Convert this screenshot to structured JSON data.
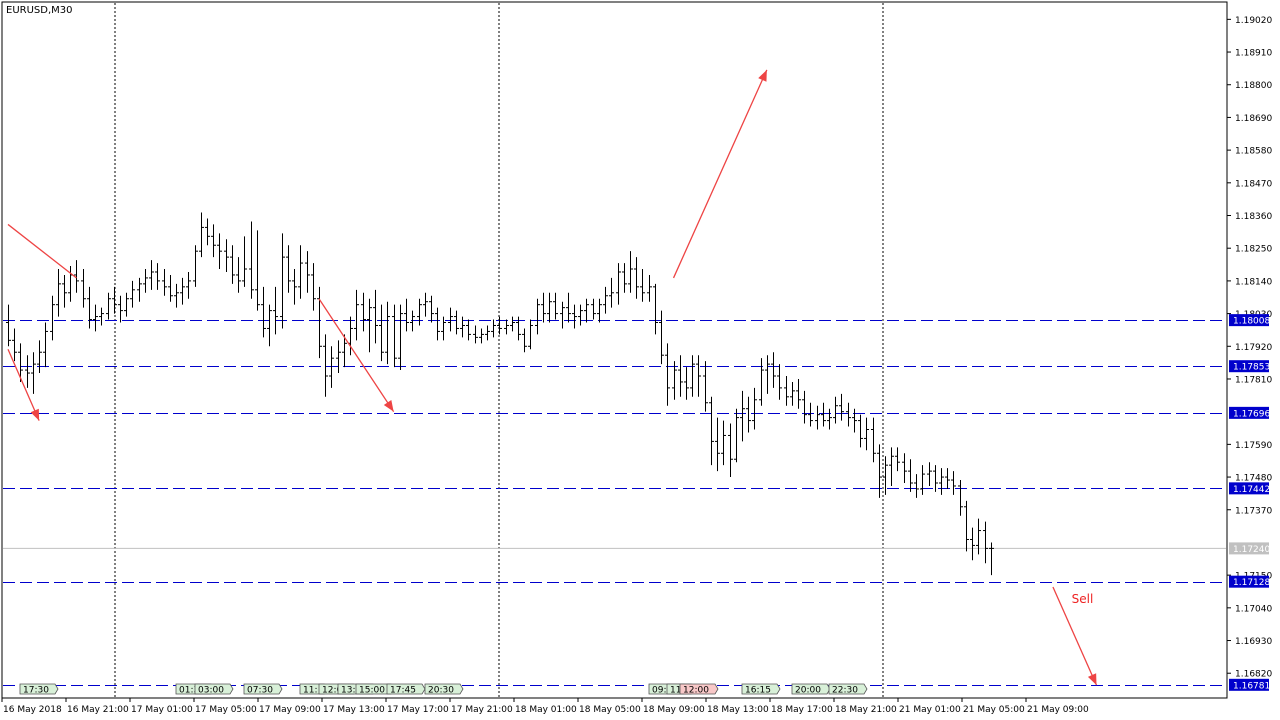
{
  "window": {
    "symbol_label": "EURUSD,M30"
  },
  "colors": {
    "bars": "#000000",
    "hline": "#0000cc",
    "price_tag_bg": "#0000cc",
    "current_tag_bg": "#c0c0c0",
    "current_line": "#c0c0c0",
    "arrow": "#ee4444",
    "event_green": "#d8f0d8",
    "event_red": "#f8c8c8",
    "note_text": "#ee2222"
  },
  "chart_data": {
    "type": "ohlc",
    "timeframe": "M30",
    "symbol": "EURUSD",
    "ylim": [
      1.1674,
      1.19075
    ],
    "y_ticks": [
      "1.19020",
      "1.18910",
      "1.18800",
      "1.18690",
      "1.18580",
      "1.18470",
      "1.18360",
      "1.18250",
      "1.18140",
      "1.18030",
      "1.17920",
      "1.17810",
      "1.17590",
      "1.17480",
      "1.17370",
      "1.17150",
      "1.17040",
      "1.16930",
      "1.16820"
    ],
    "x_ticks": [
      "16 May 2018",
      "16 May 21:00",
      "17 May 01:00",
      "17 May 05:00",
      "17 May 09:00",
      "17 May 13:00",
      "17 May 17:00",
      "17 May 21:00",
      "18 May 01:00",
      "18 May 05:00",
      "18 May 09:00",
      "18 May 13:00",
      "18 May 17:00",
      "18 May 21:00",
      "21 May 01:00",
      "21 May 05:00",
      "21 May 09:00"
    ],
    "day_separators": [
      "17 May 2018",
      "18 May 2018",
      "21 May 2018"
    ],
    "horizontal_levels": [
      "1.18008",
      "1.17853",
      "1.17696",
      "1.17442",
      "1.17128",
      "1.16781"
    ],
    "current_price": "1.17240",
    "bars": [
      [
        1.18,
        1.1806,
        1.1792,
        1.1794
      ],
      [
        1.1794,
        1.1798,
        1.1787,
        1.179
      ],
      [
        1.179,
        1.1793,
        1.178,
        1.1784
      ],
      [
        1.1784,
        1.1789,
        1.1778,
        1.1783
      ],
      [
        1.1783,
        1.179,
        1.1776,
        1.1786
      ],
      [
        1.1786,
        1.1794,
        1.1783,
        1.179
      ],
      [
        1.179,
        1.18,
        1.1785,
        1.1797
      ],
      [
        1.1797,
        1.1809,
        1.1794,
        1.1806
      ],
      [
        1.1806,
        1.1818,
        1.1802,
        1.1813
      ],
      [
        1.1813,
        1.1816,
        1.1805,
        1.181
      ],
      [
        1.181,
        1.1819,
        1.1807,
        1.1816
      ],
      [
        1.1816,
        1.1821,
        1.181,
        1.1814
      ],
      [
        1.1814,
        1.1818,
        1.1805,
        1.1808
      ],
      [
        1.1808,
        1.1812,
        1.1798,
        1.1801
      ],
      [
        1.1801,
        1.1806,
        1.1797,
        1.1802
      ],
      [
        1.1802,
        1.1805,
        1.1799,
        1.1803
      ],
      [
        1.1803,
        1.181,
        1.1801,
        1.1808
      ],
      [
        1.1808,
        1.1812,
        1.1803,
        1.1806
      ],
      [
        1.1806,
        1.1809,
        1.18,
        1.1804
      ],
      [
        1.1804,
        1.181,
        1.1802,
        1.1808
      ],
      [
        1.1808,
        1.1814,
        1.1805,
        1.1811
      ],
      [
        1.1811,
        1.1815,
        1.1807,
        1.1813
      ],
      [
        1.1813,
        1.1818,
        1.181,
        1.1815
      ],
      [
        1.1815,
        1.1821,
        1.1811,
        1.1817
      ],
      [
        1.1817,
        1.182,
        1.1811,
        1.1814
      ],
      [
        1.1814,
        1.1818,
        1.1809,
        1.1812
      ],
      [
        1.1812,
        1.1816,
        1.1807,
        1.1809
      ],
      [
        1.1809,
        1.1813,
        1.1805,
        1.181
      ],
      [
        1.181,
        1.1815,
        1.1806,
        1.1812
      ],
      [
        1.1812,
        1.1817,
        1.1808,
        1.1814
      ],
      [
        1.1814,
        1.1826,
        1.1812,
        1.1824
      ],
      [
        1.1824,
        1.1837,
        1.1822,
        1.1832
      ],
      [
        1.1832,
        1.1835,
        1.1826,
        1.1829
      ],
      [
        1.1829,
        1.1833,
        1.1822,
        1.1826
      ],
      [
        1.1826,
        1.183,
        1.1818,
        1.1824
      ],
      [
        1.1824,
        1.1828,
        1.1817,
        1.1822
      ],
      [
        1.1822,
        1.1826,
        1.1813,
        1.1816
      ],
      [
        1.1816,
        1.1822,
        1.181,
        1.1814
      ],
      [
        1.1814,
        1.1829,
        1.1812,
        1.1818
      ],
      [
        1.1818,
        1.1834,
        1.1808,
        1.1811
      ],
      [
        1.1811,
        1.1831,
        1.1804,
        1.1806
      ],
      [
        1.1806,
        1.1812,
        1.1795,
        1.1798
      ],
      [
        1.1798,
        1.1806,
        1.1792,
        1.1804
      ],
      [
        1.1804,
        1.1812,
        1.1796,
        1.1802
      ],
      [
        1.1802,
        1.183,
        1.1798,
        1.1822
      ],
      [
        1.1822,
        1.1826,
        1.181,
        1.1814
      ],
      [
        1.1814,
        1.1818,
        1.1806,
        1.1812
      ],
      [
        1.1812,
        1.1826,
        1.1808,
        1.182
      ],
      [
        1.182,
        1.1824,
        1.181,
        1.1816
      ],
      [
        1.1816,
        1.182,
        1.1804,
        1.1808
      ],
      [
        1.1808,
        1.1812,
        1.1788,
        1.1792
      ],
      [
        1.1792,
        1.1796,
        1.1775,
        1.1782
      ],
      [
        1.1782,
        1.1792,
        1.1778,
        1.1788
      ],
      [
        1.1788,
        1.1794,
        1.1783,
        1.179
      ],
      [
        1.179,
        1.1796,
        1.1785,
        1.1793
      ],
      [
        1.1793,
        1.1802,
        1.1789,
        1.1798
      ],
      [
        1.1798,
        1.1811,
        1.1794,
        1.1806
      ],
      [
        1.1806,
        1.181,
        1.1797,
        1.1801
      ],
      [
        1.1801,
        1.1808,
        1.179,
        1.1805
      ],
      [
        1.1805,
        1.1811,
        1.1793,
        1.1799
      ],
      [
        1.1799,
        1.1806,
        1.1787,
        1.179
      ],
      [
        1.179,
        1.1807,
        1.1786,
        1.1802
      ],
      [
        1.1802,
        1.1806,
        1.1785,
        1.1788
      ],
      [
        1.1788,
        1.1806,
        1.1784,
        1.1803
      ],
      [
        1.1803,
        1.1808,
        1.1797,
        1.18
      ],
      [
        1.18,
        1.1804,
        1.1797,
        1.1802
      ],
      [
        1.1802,
        1.1808,
        1.1799,
        1.1806
      ],
      [
        1.1806,
        1.181,
        1.1802,
        1.1807
      ],
      [
        1.1807,
        1.1809,
        1.18,
        1.1803
      ],
      [
        1.1803,
        1.1805,
        1.1794,
        1.1797
      ],
      [
        1.1797,
        1.1802,
        1.1794,
        1.18
      ],
      [
        1.18,
        1.1805,
        1.1797,
        1.1802
      ],
      [
        1.1802,
        1.1804,
        1.1796,
        1.1798
      ],
      [
        1.1798,
        1.1802,
        1.1795,
        1.1799
      ],
      [
        1.1799,
        1.1801,
        1.1794,
        1.1796
      ],
      [
        1.1796,
        1.1799,
        1.1793,
        1.1795
      ],
      [
        1.1795,
        1.1798,
        1.1793,
        1.1796
      ],
      [
        1.1796,
        1.1799,
        1.1794,
        1.1797
      ],
      [
        1.1797,
        1.1801,
        1.1795,
        1.1799
      ],
      [
        1.1799,
        1.1802,
        1.1796,
        1.1798
      ],
      [
        1.1798,
        1.1801,
        1.1796,
        1.1799
      ],
      [
        1.1799,
        1.1802,
        1.1797,
        1.18
      ],
      [
        1.18,
        1.1802,
        1.1794,
        1.1796
      ],
      [
        1.1796,
        1.1798,
        1.179,
        1.1792
      ],
      [
        1.1792,
        1.1801,
        1.1791,
        1.1799
      ],
      [
        1.1799,
        1.1808,
        1.1796,
        1.1806
      ],
      [
        1.1806,
        1.181,
        1.18,
        1.1803
      ],
      [
        1.1803,
        1.181,
        1.18,
        1.1807
      ],
      [
        1.1807,
        1.181,
        1.1801,
        1.1803
      ],
      [
        1.1803,
        1.1807,
        1.1798,
        1.1805
      ],
      [
        1.1805,
        1.181,
        1.18,
        1.1803
      ],
      [
        1.1803,
        1.1806,
        1.1798,
        1.1802
      ],
      [
        1.1802,
        1.1806,
        1.1799,
        1.1804
      ],
      [
        1.1804,
        1.1808,
        1.18,
        1.1806
      ],
      [
        1.1806,
        1.1808,
        1.1801,
        1.1803
      ],
      [
        1.1803,
        1.1808,
        1.18,
        1.1806
      ],
      [
        1.1806,
        1.1812,
        1.1803,
        1.1809
      ],
      [
        1.1809,
        1.1815,
        1.1805,
        1.181
      ],
      [
        1.181,
        1.182,
        1.1806,
        1.1817
      ],
      [
        1.1817,
        1.182,
        1.181,
        1.1813
      ],
      [
        1.1813,
        1.1824,
        1.181,
        1.1818
      ],
      [
        1.1818,
        1.1822,
        1.1808,
        1.1812
      ],
      [
        1.1812,
        1.1818,
        1.1807,
        1.181
      ],
      [
        1.181,
        1.1816,
        1.1807,
        1.1812
      ],
      [
        1.1812,
        1.1813,
        1.1796,
        1.18
      ],
      [
        1.18,
        1.1804,
        1.1786,
        1.1789
      ],
      [
        1.1789,
        1.1793,
        1.1772,
        1.1778
      ],
      [
        1.1778,
        1.1787,
        1.1774,
        1.1784
      ],
      [
        1.1784,
        1.1789,
        1.1775,
        1.178
      ],
      [
        1.178,
        1.1785,
        1.1774,
        1.1778
      ],
      [
        1.1778,
        1.1789,
        1.1775,
        1.1786
      ],
      [
        1.1786,
        1.1789,
        1.1775,
        1.1782
      ],
      [
        1.1782,
        1.1787,
        1.177,
        1.1773
      ],
      [
        1.1773,
        1.1775,
        1.1752,
        1.176
      ],
      [
        1.176,
        1.1768,
        1.175,
        1.1756
      ],
      [
        1.1756,
        1.1767,
        1.1752,
        1.1762
      ],
      [
        1.1762,
        1.1766,
        1.1748,
        1.1754
      ],
      [
        1.1754,
        1.1771,
        1.1753,
        1.1768
      ],
      [
        1.1768,
        1.1777,
        1.176,
        1.1771
      ],
      [
        1.1771,
        1.1775,
        1.1763,
        1.1767
      ],
      [
        1.1767,
        1.1778,
        1.1764,
        1.1774
      ],
      [
        1.1774,
        1.1788,
        1.1772,
        1.1784
      ],
      [
        1.1784,
        1.1789,
        1.1776,
        1.1786
      ],
      [
        1.1786,
        1.179,
        1.1778,
        1.1782
      ],
      [
        1.1782,
        1.1786,
        1.1774,
        1.1778
      ],
      [
        1.1778,
        1.1782,
        1.1772,
        1.1775
      ],
      [
        1.1775,
        1.178,
        1.1772,
        1.1777
      ],
      [
        1.1777,
        1.1781,
        1.1771,
        1.1774
      ],
      [
        1.1774,
        1.1777,
        1.1766,
        1.1769
      ],
      [
        1.1769,
        1.1773,
        1.1765,
        1.1767
      ],
      [
        1.1767,
        1.1772,
        1.1764,
        1.1769
      ],
      [
        1.1769,
        1.1773,
        1.1765,
        1.1767
      ],
      [
        1.1767,
        1.1771,
        1.1764,
        1.1768
      ],
      [
        1.1768,
        1.1775,
        1.1766,
        1.1772
      ],
      [
        1.1772,
        1.1776,
        1.1767,
        1.177
      ],
      [
        1.177,
        1.1773,
        1.1765,
        1.1768
      ],
      [
        1.1768,
        1.1771,
        1.1763,
        1.1767
      ],
      [
        1.1767,
        1.1769,
        1.1758,
        1.1761
      ],
      [
        1.1761,
        1.1768,
        1.1757,
        1.1764
      ],
      [
        1.1764,
        1.1768,
        1.1753,
        1.1756
      ],
      [
        1.1756,
        1.1759,
        1.1741,
        1.1748
      ],
      [
        1.1748,
        1.1755,
        1.1742,
        1.1752
      ],
      [
        1.1752,
        1.1758,
        1.1745,
        1.1755
      ],
      [
        1.1755,
        1.1758,
        1.175,
        1.1753
      ],
      [
        1.1753,
        1.1756,
        1.1746,
        1.175
      ],
      [
        1.175,
        1.1754,
        1.1743,
        1.1746
      ],
      [
        1.1746,
        1.1749,
        1.1741,
        1.1744
      ],
      [
        1.1744,
        1.1752,
        1.1742,
        1.1749
      ],
      [
        1.1749,
        1.1753,
        1.1745,
        1.175
      ],
      [
        1.175,
        1.1752,
        1.1743,
        1.1746
      ],
      [
        1.1746,
        1.1751,
        1.1742,
        1.1748
      ],
      [
        1.1748,
        1.1751,
        1.1744,
        1.1747
      ],
      [
        1.1747,
        1.175,
        1.1742,
        1.1745
      ],
      [
        1.1745,
        1.1747,
        1.1735,
        1.1738
      ],
      [
        1.1738,
        1.174,
        1.1723,
        1.1727
      ],
      [
        1.1727,
        1.1731,
        1.172,
        1.1725
      ],
      [
        1.1725,
        1.1734,
        1.1722,
        1.173
      ],
      [
        1.173,
        1.1733,
        1.1719,
        1.1724
      ],
      [
        1.1724,
        1.1726,
        1.1715,
        1.1724
      ]
    ],
    "event_tags": [
      {
        "text": "17:30",
        "kind": "green",
        "bar": 2
      },
      {
        "text": "01:30",
        "kind": "green",
        "bar": 27
      },
      {
        "text": "03:00",
        "kind": "green",
        "bar": 30
      },
      {
        "text": "07:30",
        "kind": "green",
        "bar": 38
      },
      {
        "text": "11:",
        "kind": "green",
        "bar": 47
      },
      {
        "text": "12:00",
        "kind": "green",
        "bar": 50
      },
      {
        "text": "13:30",
        "kind": "green",
        "bar": 53
      },
      {
        "text": "15:00",
        "kind": "green",
        "bar": 56
      },
      {
        "text": "17:45",
        "kind": "green",
        "bar": 61
      },
      {
        "text": "20:30",
        "kind": "green",
        "bar": 67
      },
      {
        "text": "09:00",
        "kind": "green",
        "bar": 103
      },
      {
        "text": "11:",
        "kind": "green",
        "bar": 106
      },
      {
        "text": "12:00",
        "kind": "red",
        "bar": 108
      },
      {
        "text": "16:15",
        "kind": "green",
        "bar": 118
      },
      {
        "text": "20:00",
        "kind": "green",
        "bar": 126
      },
      {
        "text": "22:30",
        "kind": "green",
        "bar": 132
      }
    ],
    "arrows": [
      {
        "from": [
          0,
          1.1791
        ],
        "to": [
          5,
          1.1767
        ],
        "head": true
      },
      {
        "from": [
          0,
          1.1833
        ],
        "to": [
          11,
          1.1815
        ],
        "head": false
      },
      {
        "from": [
          50,
          1.1808
        ],
        "to": [
          62,
          1.177
        ],
        "head": true
      },
      {
        "from": [
          107,
          1.1815
        ],
        "to": [
          122,
          1.1885
        ],
        "head": true
      },
      {
        "from": [
          168,
          1.1711
        ],
        "to": [
          175,
          1.1678
        ],
        "head": true
      }
    ],
    "annotation": {
      "text": "Sell",
      "bar": 171,
      "price": 1.17057
    }
  }
}
